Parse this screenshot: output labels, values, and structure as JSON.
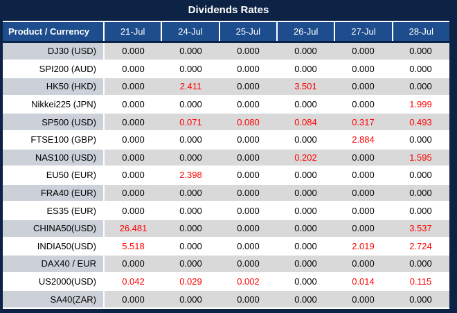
{
  "title": "Dividends Rates",
  "colors": {
    "frame_navy": "#0d2345",
    "header_blue": "#1d4d8c",
    "header_text": "#ffffff",
    "row_label_gray": "#ccd1d9",
    "row_value_gray": "#d9d9d9",
    "row_white": "#ffffff",
    "value_text": "#000000",
    "nonzero_value_red": "#ff0000"
  },
  "chart_data": {
    "type": "table",
    "title": "Dividends Rates",
    "columns": [
      "Product / Currency",
      "21-Jul",
      "24-Jul",
      "25-Jul",
      "26-Jul",
      "27-Jul",
      "28-Jul"
    ],
    "rows": [
      [
        "DJ30 (USD)",
        "0.000",
        "0.000",
        "0.000",
        "0.000",
        "0.000",
        "0.000"
      ],
      [
        "SPI200 (AUD)",
        "0.000",
        "0.000",
        "0.000",
        "0.000",
        "0.000",
        "0.000"
      ],
      [
        "HK50 (HKD)",
        "0.000",
        "2.411",
        "0.000",
        "3.501",
        "0.000",
        "0.000"
      ],
      [
        "Nikkei225 (JPN)",
        "0.000",
        "0.000",
        "0.000",
        "0.000",
        "0.000",
        "1.999"
      ],
      [
        "SP500 (USD)",
        "0.000",
        "0.071",
        "0.080",
        "0.084",
        "0.317",
        "0.493"
      ],
      [
        "FTSE100 (GBP)",
        "0.000",
        "0.000",
        "0.000",
        "0.000",
        "2.884",
        "0.000"
      ],
      [
        "NAS100 (USD)",
        "0.000",
        "0.000",
        "0.000",
        "0.202",
        "0.000",
        "1.595"
      ],
      [
        "EU50 (EUR)",
        "0.000",
        "2.398",
        "0.000",
        "0.000",
        "0.000",
        "0.000"
      ],
      [
        "FRA40 (EUR)",
        "0.000",
        "0.000",
        "0.000",
        "0.000",
        "0.000",
        "0.000"
      ],
      [
        "ES35 (EUR)",
        "0.000",
        "0.000",
        "0.000",
        "0.000",
        "0.000",
        "0.000"
      ],
      [
        "CHINA50(USD)",
        "26.481",
        "0.000",
        "0.000",
        "0.000",
        "0.000",
        "3.537"
      ],
      [
        "INDIA50(USD)",
        "5.518",
        "0.000",
        "0.000",
        "0.000",
        "2.019",
        "2.724"
      ],
      [
        "DAX40 / EUR",
        "0.000",
        "0.000",
        "0.000",
        "0.000",
        "0.000",
        "0.000"
      ],
      [
        "US2000(USD)",
        "0.042",
        "0.029",
        "0.002",
        "0.000",
        "0.014",
        "0.115"
      ],
      [
        "SA40(ZAR)",
        "0.000",
        "0.000",
        "0.000",
        "0.000",
        "0.000",
        "0.000"
      ]
    ],
    "style_rule": "non-zero values displayed in red",
    "row_striping": "alternating gray/white starting gray"
  }
}
